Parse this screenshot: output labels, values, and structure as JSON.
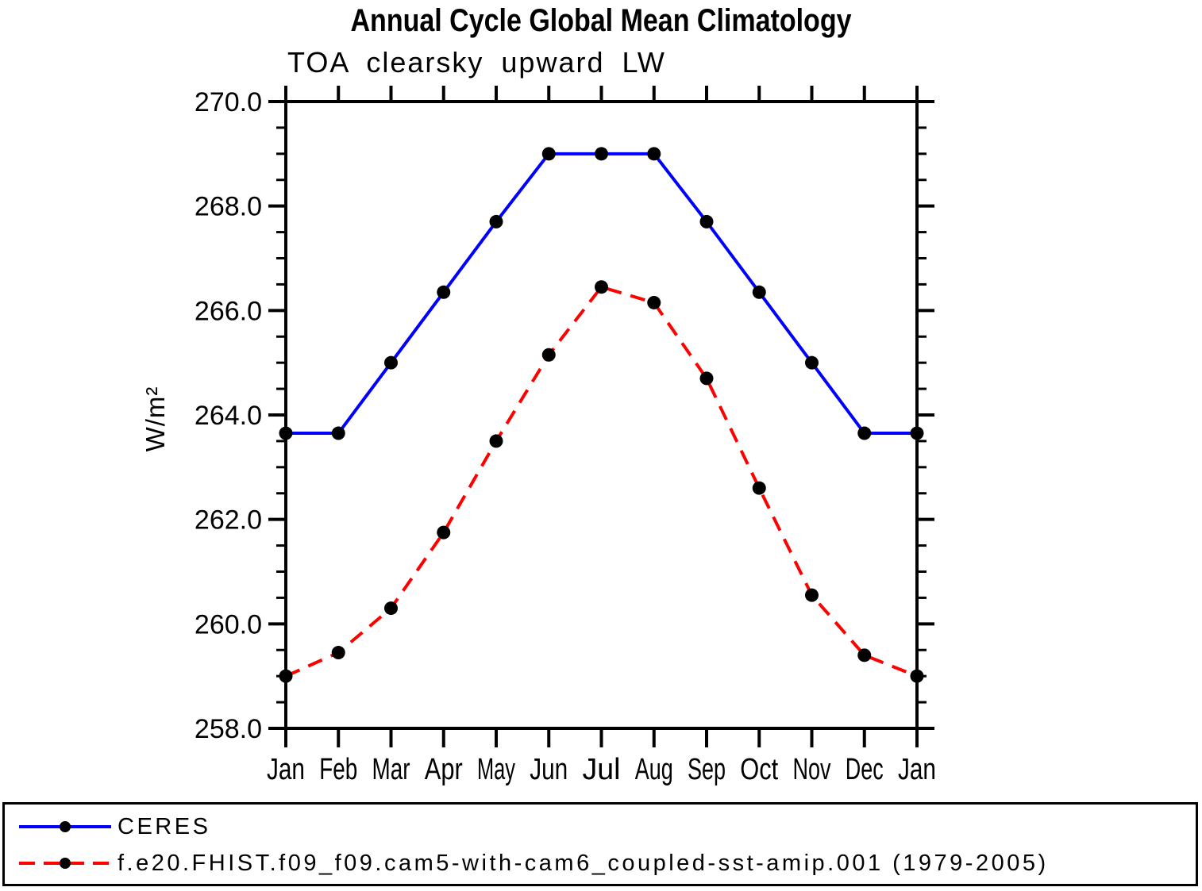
{
  "chart": {
    "title": "Annual Cycle Global Mean Climatology",
    "subtitle": "TOA clearsky upward LW",
    "ylabel": "W/m²"
  },
  "legend": {
    "items": [
      {
        "label": "CERES",
        "color": "#0000ff",
        "style": "solid"
      },
      {
        "label": "f.e20.FHIST.f09_f09.cam5-with-cam6_coupled-sst-amip.001 (1979-2005)",
        "color": "#ff0000",
        "style": "dashed"
      }
    ]
  },
  "chart_data": {
    "type": "line",
    "title": "Annual Cycle Global Mean Climatology",
    "subtitle": "TOA clearsky upward LW",
    "xlabel": "",
    "ylabel": "W/m²",
    "categories": [
      "Jan",
      "Feb",
      "Mar",
      "Apr",
      "May",
      "Jun",
      "Jul",
      "Aug",
      "Sep",
      "Oct",
      "Nov",
      "Dec",
      "Jan"
    ],
    "series": [
      {
        "name": "CERES",
        "color": "#0000ff",
        "line_style": "solid",
        "marker": "circle",
        "marker_color": "#000000",
        "values": [
          263.65,
          263.65,
          265.0,
          266.35,
          267.7,
          269.0,
          269.0,
          269.0,
          267.7,
          266.35,
          265.0,
          263.65,
          263.65
        ]
      },
      {
        "name": "f.e20.FHIST.f09_f09.cam5-with-cam6_coupled-sst-amip.001 (1979-2005)",
        "color": "#ff0000",
        "line_style": "dashed",
        "marker": "circle",
        "marker_color": "#000000",
        "values": [
          259.0,
          259.45,
          260.3,
          261.75,
          263.5,
          265.15,
          266.45,
          266.15,
          264.7,
          262.6,
          260.55,
          259.4,
          259.0
        ]
      }
    ],
    "ylim": [
      258.0,
      270.0
    ],
    "y_major_step": 2.0,
    "y_minor_step": 0.5,
    "y_tick_labels": [
      "258.0",
      "260.0",
      "262.0",
      "264.0",
      "266.0",
      "268.0",
      "270.0"
    ],
    "grid": false,
    "frame": "box-with-outward-ticks",
    "legend_position": "bottom"
  }
}
